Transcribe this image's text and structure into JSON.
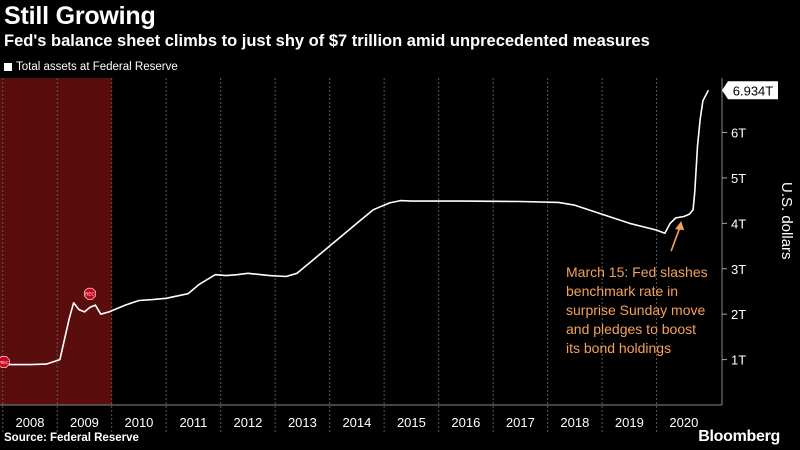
{
  "header": {
    "title": "Still Growing",
    "subtitle": "Fed's balance sheet climbs to just shy of $7 trillion amid unprecedented measures"
  },
  "legend": {
    "label": "Total assets at Federal Reserve"
  },
  "footer": {
    "source": "Source: Federal Reserve",
    "brand": "Bloomberg"
  },
  "colors": {
    "background": "#000000",
    "line": "#ffffff",
    "recession_band": "#5a0d0d",
    "annotation": "#f5a15a",
    "recession_marker": "#d0021b"
  },
  "chart_data": {
    "type": "line",
    "title": "Still Growing",
    "subtitle": "Fed's balance sheet climbs to just shy of $7 trillion amid unprecedented measures",
    "ylabel": "U.S. dollars",
    "ylim": [
      0,
      7.2
    ],
    "y_ticks": [
      1,
      2,
      3,
      4,
      5,
      6
    ],
    "y_tick_labels": [
      "1T",
      "2T",
      "3T",
      "4T",
      "5T",
      "6T"
    ],
    "x_ticks": [
      2008,
      2009,
      2010,
      2011,
      2012,
      2013,
      2014,
      2015,
      2016,
      2017,
      2018,
      2019,
      2020
    ],
    "x_tick_labels": [
      "2008",
      "2009",
      "2010",
      "2011",
      "2012",
      "2013",
      "2014",
      "2015",
      "2016",
      "2017",
      "2018",
      "2019",
      "2020"
    ],
    "xlim": [
      2007.45,
      2020.7
    ],
    "grid": "vertical",
    "series": [
      {
        "name": "Total assets at Federal Reserve",
        "x": [
          2007.45,
          2008.0,
          2008.3,
          2008.55,
          2008.72,
          2008.8,
          2008.9,
          2009.0,
          2009.1,
          2009.2,
          2009.3,
          2009.45,
          2009.55,
          2009.75,
          2010.0,
          2010.25,
          2010.5,
          2010.9,
          2011.1,
          2011.4,
          2011.6,
          2011.8,
          2012.0,
          2012.4,
          2012.7,
          2012.9,
          2013.2,
          2013.5,
          2013.8,
          2014.0,
          2014.3,
          2014.6,
          2014.8,
          2015.0,
          2016.0,
          2017.0,
          2017.7,
          2018.0,
          2018.5,
          2019.0,
          2019.5,
          2019.65,
          2019.75,
          2019.85,
          2020.0,
          2020.1,
          2020.17,
          2020.2,
          2020.25,
          2020.3,
          2020.35,
          2020.45
        ],
        "values": [
          0.89,
          0.89,
          0.9,
          1.0,
          1.9,
          2.25,
          2.1,
          2.05,
          2.15,
          2.2,
          2.0,
          2.05,
          2.1,
          2.2,
          2.3,
          2.32,
          2.35,
          2.45,
          2.65,
          2.87,
          2.85,
          2.87,
          2.9,
          2.85,
          2.83,
          2.9,
          3.2,
          3.5,
          3.8,
          4.0,
          4.3,
          4.45,
          4.5,
          4.49,
          4.49,
          4.48,
          4.46,
          4.4,
          4.2,
          4.0,
          3.85,
          3.78,
          4.0,
          4.12,
          4.15,
          4.2,
          4.3,
          4.7,
          5.7,
          6.3,
          6.7,
          6.93
        ]
      }
    ],
    "last_value_label": "6.934T",
    "recessions": [
      {
        "start": 2007.45,
        "end": 2009.5
      }
    ],
    "recession_markers": [
      {
        "x": 2007.52,
        "y": 0.95
      },
      {
        "x": 2009.1,
        "y": 2.45
      }
    ],
    "recession_marker_label": "REC",
    "annotation": {
      "lines": [
        "March 15: Fed slashes",
        "benchmark rate in",
        "surprise Sunday move",
        "and pledges to boost",
        "its bond holdings"
      ],
      "arrow_to": {
        "x": 2019.95,
        "y": 4.05
      }
    }
  }
}
